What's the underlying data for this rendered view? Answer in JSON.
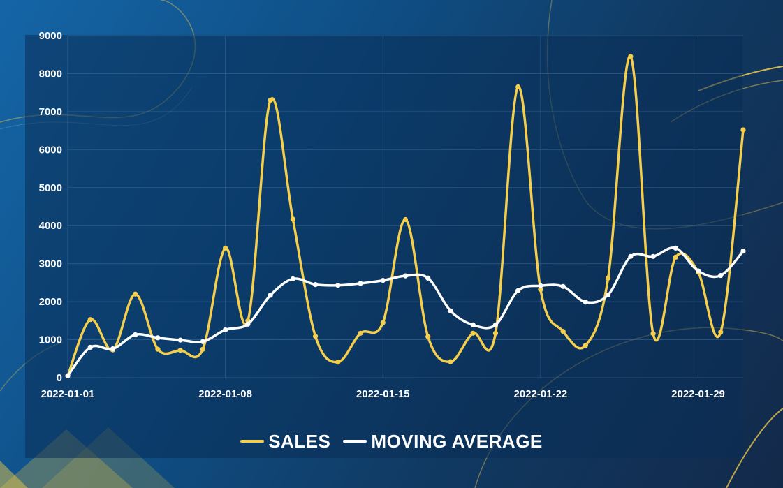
{
  "chart_data": {
    "type": "line",
    "x": [
      "2022-01-01",
      "2022-01-02",
      "2022-01-03",
      "2022-01-04",
      "2022-01-05",
      "2022-01-06",
      "2022-01-07",
      "2022-01-08",
      "2022-01-09",
      "2022-01-10",
      "2022-01-11",
      "2022-01-12",
      "2022-01-13",
      "2022-01-14",
      "2022-01-15",
      "2022-01-16",
      "2022-01-17",
      "2022-01-18",
      "2022-01-19",
      "2022-01-20",
      "2022-01-21",
      "2022-01-22",
      "2022-01-23",
      "2022-01-24",
      "2022-01-25",
      "2022-01-26",
      "2022-01-27",
      "2022-01-28",
      "2022-01-29",
      "2022-01-30",
      "2022-01-31"
    ],
    "x_tick_labels": [
      "2022-01-01",
      "2022-01-08",
      "2022-01-15",
      "2022-01-22",
      "2022-01-29"
    ],
    "y_tick_labels": [
      "0",
      "1000",
      "2000",
      "3000",
      "4000",
      "5000",
      "6000",
      "7000",
      "8000",
      "9000"
    ],
    "ylim": [
      0,
      9000
    ],
    "grid": true,
    "legend_position": "bottom-center",
    "series": [
      {
        "name": "SALES",
        "color": "#f5cf4b",
        "values": [
          50,
          1530,
          730,
          2200,
          750,
          720,
          750,
          3410,
          1500,
          7300,
          4170,
          1090,
          410,
          1170,
          1450,
          4160,
          1080,
          420,
          1170,
          1170,
          7650,
          2320,
          1220,
          850,
          2620,
          8450,
          1160,
          3170,
          2780,
          1200,
          6520
        ]
      },
      {
        "name": "MOVING AVERAGE",
        "color": "#ffffff",
        "values": [
          50,
          800,
          760,
          1130,
          1050,
          990,
          950,
          1260,
          1410,
          2170,
          2600,
          2450,
          2430,
          2480,
          2560,
          2680,
          2620,
          1760,
          1390,
          1390,
          2290,
          2420,
          2400,
          1990,
          2180,
          3190,
          3190,
          3410,
          2810,
          2690,
          3330
        ]
      }
    ]
  }
}
